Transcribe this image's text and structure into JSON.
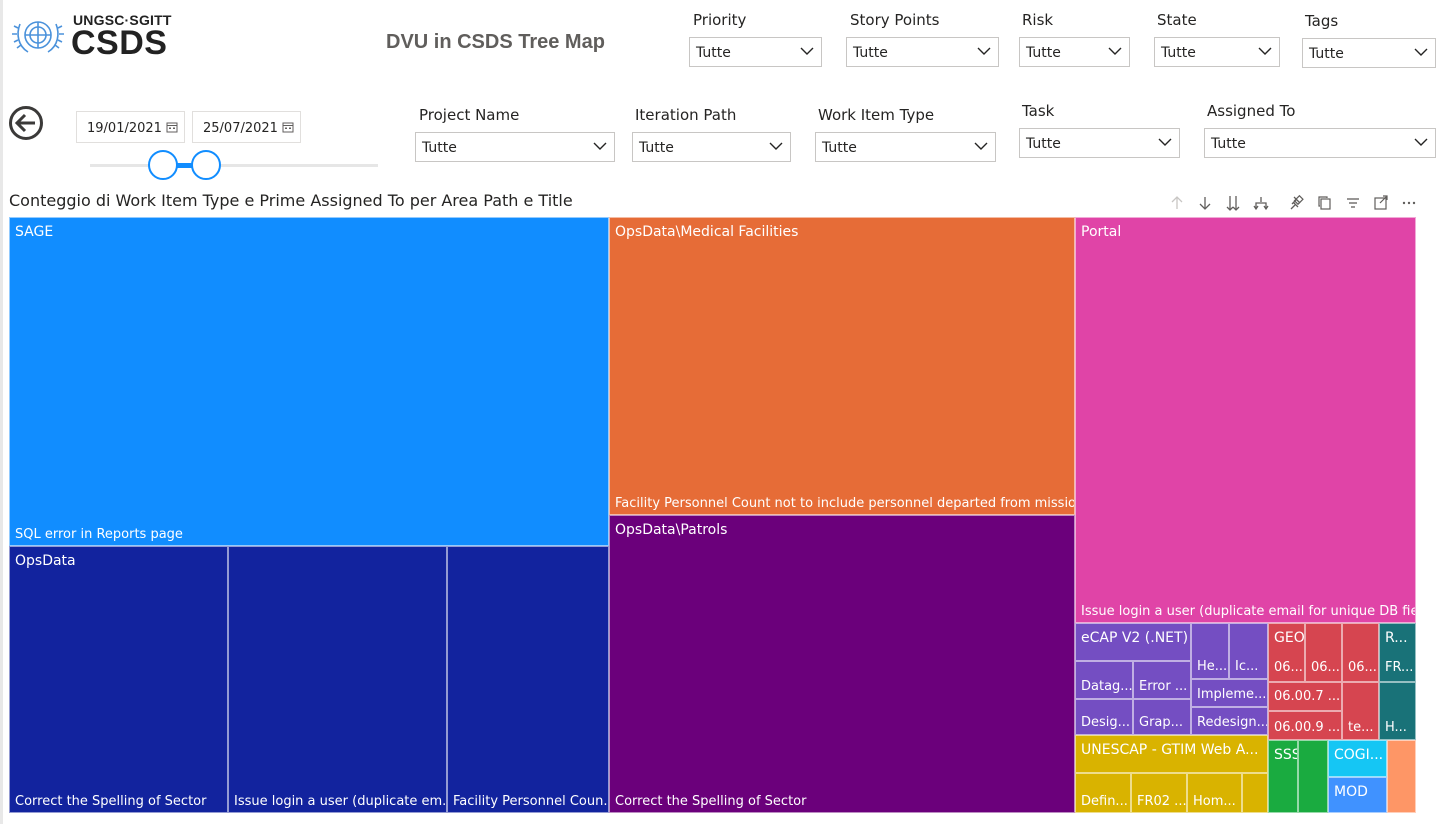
{
  "header": {
    "brand_top": "UNGSC·SGITT",
    "brand_main": "CSDS",
    "report_title": "DVU in CSDS Tree Map"
  },
  "slicers": {
    "priority": {
      "label": "Priority",
      "value": "Tutte"
    },
    "story_points": {
      "label": "Story Points",
      "value": "Tutte"
    },
    "risk": {
      "label": "Risk",
      "value": "Tutte"
    },
    "state": {
      "label": "State",
      "value": "Tutte"
    },
    "tags": {
      "label": "Tags",
      "value": "Tutte"
    },
    "project_name": {
      "label": "Project Name",
      "value": "Tutte"
    },
    "iteration_path": {
      "label": "Iteration Path",
      "value": "Tutte"
    },
    "work_item_type": {
      "label": "Work Item Type",
      "value": "Tutte"
    },
    "task": {
      "label": "Task",
      "value": "Tutte"
    },
    "assigned_to": {
      "label": "Assigned To",
      "value": "Tutte"
    }
  },
  "date_range": {
    "start": "19/01/2021",
    "end": "25/07/2021",
    "slider_start": 0.25,
    "slider_end": 0.4
  },
  "visual": {
    "title": "Conteggio di Work Item Type e Prime Assigned To per Area Path e Title"
  },
  "treemap": {
    "sage": {
      "header": "SAGE",
      "title": "SQL error in Reports page",
      "color": "#118dff"
    },
    "opsdata": {
      "header": "OpsData",
      "titles": [
        "Correct the Spelling of Sector",
        "Issue login a user (duplicate em...",
        "Facility Personnel Coun..."
      ],
      "color": "#12239e"
    },
    "medical": {
      "header": "OpsData\\Medical Facilities",
      "title": "Facility Personnel Count not to include personnel departed from mission",
      "color": "#e66c37"
    },
    "patrols": {
      "header": "OpsData\\Patrols",
      "title": "Correct the Spelling of Sector",
      "color": "#6b007b"
    },
    "portal": {
      "header": "Portal",
      "title": "Issue login a user (duplicate email for unique DB field)",
      "color": "#e044a7"
    },
    "ecap": {
      "header": "eCAP V2 (.NET)",
      "cells": [
        "He...",
        "Ic...",
        "Datag...",
        "Error ...",
        "Impleme...",
        "Desig...",
        "Grap...",
        "Redesign..."
      ],
      "color": "#744ec2"
    },
    "geoimagery": {
      "header": "GEOIMAGERY",
      "cells": [
        "06...",
        "06...",
        "06...",
        "06.00.7 ...",
        "06.00.9 ...",
        "te..."
      ],
      "color": "#d64550"
    },
    "teal": {
      "header": "R...",
      "cells": [
        "FR...",
        "H..."
      ],
      "color": "#197278"
    },
    "unescap": {
      "header": "UNESCAP - GTIM Web A...",
      "cells": [
        "Defin...",
        "FR02 ...",
        "Hom..."
      ],
      "color": "#d9b300"
    },
    "sssn": {
      "header": "SSSN...",
      "color": "#1aab40"
    },
    "cogi": {
      "header": "COGI...",
      "color": "#15c6f4"
    },
    "mod": {
      "header": "MOD",
      "color": "#4092ff"
    },
    "orange_small": {
      "color": "#fe9666"
    }
  }
}
